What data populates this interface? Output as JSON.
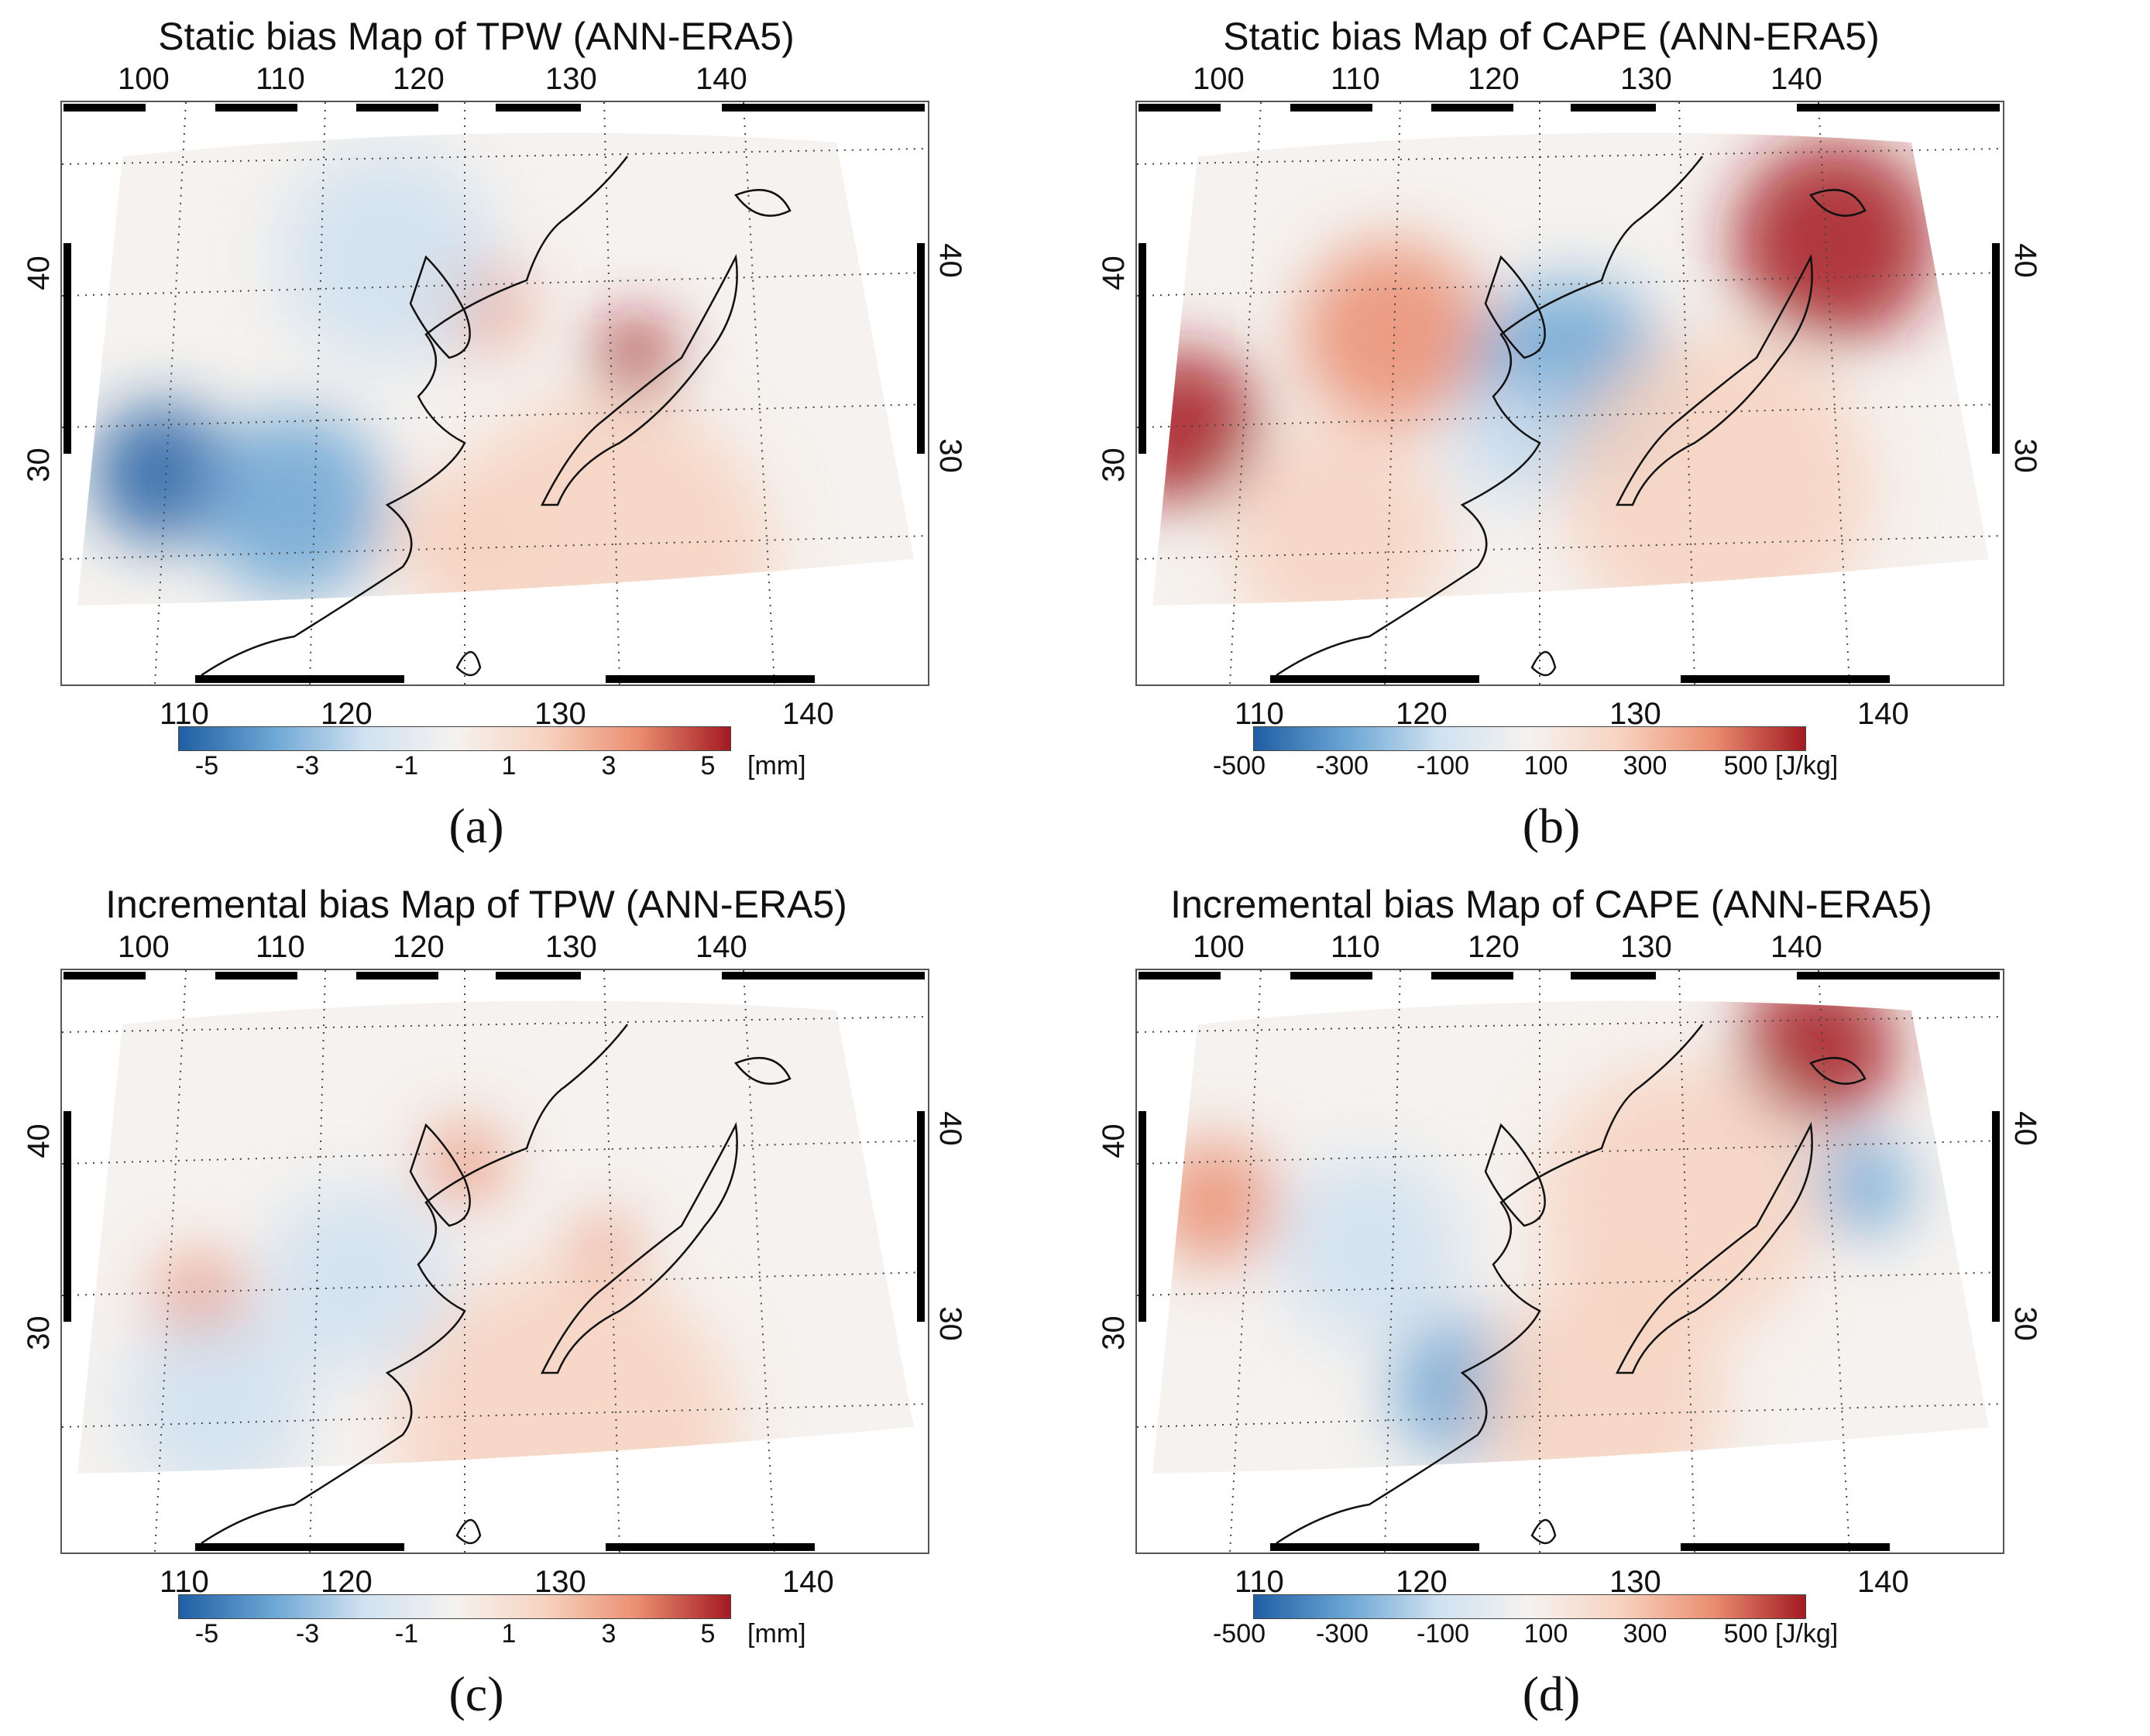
{
  "colors": {
    "neg_strong": "#1f5ea3",
    "neg_mid": "#6aa5d4",
    "neg_weak": "#cfe1f0",
    "neutral": "#f5f2ef",
    "pos_weak": "#f7d2bf",
    "pos_mid": "#ea8d70",
    "pos_strong": "#a31a22",
    "coast": "#111111",
    "graticule": "#444444"
  },
  "panels": [
    {
      "id": "a",
      "title": "Static bias Map of TPW (ANN-ERA5)",
      "letter": "(a)",
      "lon_top": [
        "100",
        "110",
        "120",
        "130",
        "140"
      ],
      "lon_bottom": [
        "110",
        "120",
        "130",
        "140"
      ],
      "lat_left": [
        "40",
        "30"
      ],
      "lat_right": [
        "40",
        "30"
      ],
      "colorbar": {
        "ticks": [
          "-5",
          "-3",
          "-1",
          "1",
          "3",
          "5"
        ],
        "unit": "[mm]",
        "range": [
          -5,
          5
        ]
      }
    },
    {
      "id": "b",
      "title": "Static bias Map of CAPE (ANN-ERA5)",
      "letter": "(b)",
      "lon_top": [
        "100",
        "110",
        "120",
        "130",
        "140"
      ],
      "lon_bottom": [
        "110",
        "120",
        "130",
        "140"
      ],
      "lat_left": [
        "40",
        "30"
      ],
      "lat_right": [
        "40",
        "30"
      ],
      "colorbar": {
        "ticks": [
          "-500",
          "-300",
          "-100",
          "100",
          "300",
          "500"
        ],
        "unit": "[J/kg]",
        "range": [
          -500,
          500
        ]
      }
    },
    {
      "id": "c",
      "title": "Incremental bias Map of TPW (ANN-ERA5)",
      "letter": "(c)",
      "lon_top": [
        "100",
        "110",
        "120",
        "130",
        "140"
      ],
      "lon_bottom": [
        "110",
        "120",
        "130",
        "140"
      ],
      "lat_left": [
        "40",
        "30"
      ],
      "lat_right": [
        "40",
        "30"
      ],
      "colorbar": {
        "ticks": [
          "-5",
          "-3",
          "-1",
          "1",
          "3",
          "5"
        ],
        "unit": "[mm]",
        "range": [
          -5,
          5
        ]
      }
    },
    {
      "id": "d",
      "title": "Incremental bias Map of CAPE (ANN-ERA5)",
      "letter": "(d)",
      "lon_top": [
        "100",
        "110",
        "120",
        "130",
        "140"
      ],
      "lon_bottom": [
        "110",
        "120",
        "130",
        "140"
      ],
      "lat_left": [
        "40",
        "30"
      ],
      "lat_right": [
        "40",
        "30"
      ],
      "colorbar": {
        "ticks": [
          "-500",
          "-300",
          "-100",
          "100",
          "300",
          "500"
        ],
        "unit": "[J/kg]",
        "range": [
          -500,
          500
        ]
      }
    }
  ]
}
